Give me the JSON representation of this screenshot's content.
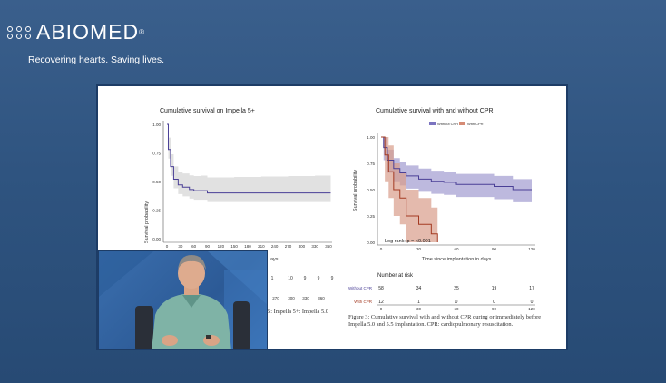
{
  "brand": {
    "name": "ABIOMED",
    "registered": "®",
    "tagline": "Recovering hearts. Saving lives."
  },
  "left_chart": {
    "title": "Cumulative survival on Impella 5+",
    "ylabel": "Survival probability",
    "y_ticks": [
      "1.00",
      "0.75",
      "0.50",
      "0.25",
      "0.00"
    ],
    "x_ticks": [
      "0",
      "30",
      "60",
      "90",
      "120",
      "150",
      "180",
      "210",
      "240",
      "270",
      "300",
      "330",
      "360"
    ],
    "xlabel_partial": "ays",
    "risk_partial": [
      "1",
      "10",
      "9",
      "9",
      "9"
    ],
    "risk_x_ticks_partial": [
      "270",
      "300",
      "330",
      "360"
    ],
    "caption_partial": "5: Impella 5+: Impella 5.0"
  },
  "right_chart": {
    "title": "Cumulative survival with and without CPR",
    "legend": [
      {
        "label": "Without CPR",
        "color": "#5b4fa0"
      },
      {
        "label": "With CPR",
        "color": "#b9492e"
      }
    ],
    "ylabel": "Survival probability",
    "y_ticks": [
      "1.00",
      "0.75",
      "0.50",
      "0.25",
      "0.00"
    ],
    "x_ticks": [
      "0",
      "30",
      "60",
      "90",
      "120"
    ],
    "xlabel": "Time since implantation in days",
    "logrank": "Log rank: p = <0.001",
    "risk_title": "Number at risk",
    "risk_rows": [
      {
        "label": "Without CPR",
        "values": [
          "58",
          "34",
          "25",
          "19",
          "17"
        ]
      },
      {
        "label": "With CPR",
        "values": [
          "12",
          "1",
          "0",
          "0",
          "0"
        ]
      }
    ],
    "caption": "Figure 3: Cumulative survival with and without CPR during or immediately before Impella 5.0 and 5.5 implantation. CPR: cardiopulmonary resuscitation."
  },
  "chart_data": [
    {
      "type": "line",
      "title": "Cumulative survival on Impella 5+",
      "xlabel": "Time since implantation in days",
      "ylabel": "Survival probability",
      "xlim": [
        0,
        360
      ],
      "ylim": [
        0,
        1
      ],
      "series": [
        {
          "name": "Impella 5+",
          "x": [
            0,
            3,
            8,
            15,
            25,
            35,
            50,
            60,
            75,
            90,
            150,
            210,
            270,
            330,
            365
          ],
          "y": [
            1.0,
            0.78,
            0.63,
            0.52,
            0.47,
            0.45,
            0.43,
            0.42,
            0.42,
            0.4,
            0.4,
            0.4,
            0.4,
            0.4,
            0.4
          ]
        }
      ]
    },
    {
      "type": "line",
      "title": "Cumulative survival with and without CPR",
      "xlabel": "Time since implantation in days",
      "ylabel": "Survival probability",
      "xlim": [
        0,
        120
      ],
      "ylim": [
        0,
        1
      ],
      "series": [
        {
          "name": "Without CPR",
          "x": [
            0,
            2,
            5,
            10,
            15,
            20,
            30,
            40,
            50,
            60,
            75,
            90,
            105,
            120
          ],
          "y": [
            1.0,
            0.9,
            0.78,
            0.7,
            0.66,
            0.63,
            0.6,
            0.58,
            0.57,
            0.55,
            0.55,
            0.53,
            0.5,
            0.5
          ]
        },
        {
          "name": "With CPR",
          "x": [
            0,
            3,
            6,
            10,
            15,
            20,
            30,
            40,
            45
          ],
          "y": [
            1.0,
            0.83,
            0.67,
            0.5,
            0.42,
            0.25,
            0.17,
            0.08,
            0.0
          ]
        }
      ]
    }
  ]
}
